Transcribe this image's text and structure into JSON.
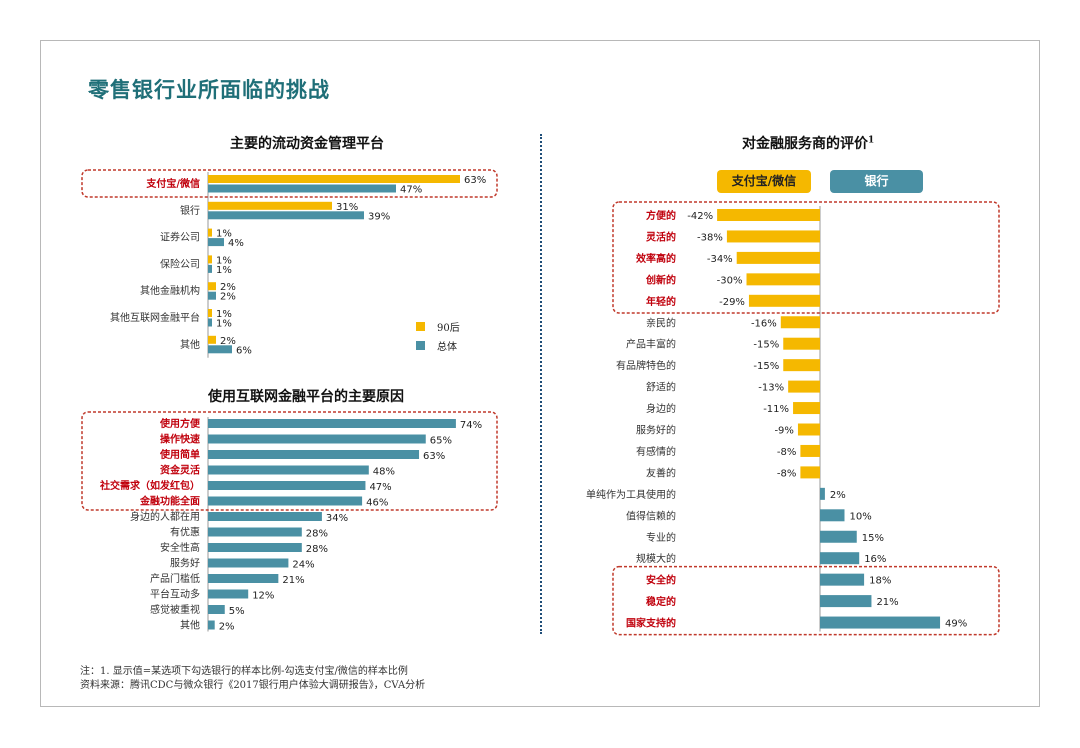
{
  "page_title": "零售银行业所面临的挑战",
  "chart_data": [
    {
      "type": "bar",
      "orientation": "horizontal",
      "title": "主要的流动资金管理平台",
      "categories": [
        "支付宝/微信",
        "银行",
        "证券公司",
        "保险公司",
        "其他金融机构",
        "其他互联网金融平台",
        "其他"
      ],
      "series": [
        {
          "name": "90后",
          "values": [
            63,
            31,
            1,
            1,
            2,
            1,
            2
          ],
          "color": "#f5b800"
        },
        {
          "name": "总体",
          "values": [
            47,
            39,
            4,
            1,
            2,
            1,
            6
          ],
          "color": "#4a90a4"
        }
      ],
      "highlighted_categories": [
        "支付宝/微信"
      ],
      "value_suffix": "%",
      "legend_position": "bottom-right",
      "xlim": [
        0,
        100
      ]
    },
    {
      "type": "bar",
      "orientation": "horizontal",
      "title": "使用互联网金融平台的主要原因",
      "categories": [
        "使用方便",
        "操作快速",
        "使用简单",
        "资金灵活",
        "社交需求（如发红包）",
        "金融功能全面",
        "身边的人都在用",
        "有优惠",
        "安全性高",
        "服务好",
        "产品门槛低",
        "平台互动多",
        "感觉被重视",
        "其他"
      ],
      "values": [
        74,
        65,
        63,
        48,
        47,
        46,
        34,
        28,
        28,
        24,
        21,
        12,
        5,
        2
      ],
      "color": "#4a90a4",
      "highlighted_categories": [
        "使用方便",
        "操作快速",
        "使用简单",
        "资金灵活",
        "社交需求（如发红包）",
        "金融功能全面"
      ],
      "value_suffix": "%",
      "xlim": [
        0,
        100
      ]
    },
    {
      "type": "bar",
      "orientation": "horizontal",
      "title": "对金融服务商的评价",
      "title_superscript": "1",
      "legend": [
        "支付宝/微信",
        "银行"
      ],
      "legend_position": "top",
      "categories": [
        "方便的",
        "灵活的",
        "效率高的",
        "创新的",
        "年轻的",
        "亲民的",
        "产品丰富的",
        "有品牌特色的",
        "舒适的",
        "身边的",
        "服务好的",
        "有感情的",
        "友善的",
        "单纯作为工具使用的",
        "值得信赖的",
        "专业的",
        "规模大的",
        "安全的",
        "稳定的",
        "国家支持的"
      ],
      "values": [
        -42,
        -38,
        -34,
        -30,
        -29,
        -16,
        -15,
        -15,
        -13,
        -11,
        -9,
        -8,
        -8,
        2,
        10,
        15,
        16,
        18,
        21,
        49
      ],
      "negative_color": "#f5b800",
      "positive_color": "#4a90a4",
      "highlighted_categories": [
        "方便的",
        "灵活的",
        "效率高的",
        "创新的",
        "年轻的",
        "安全的",
        "稳定的",
        "国家支持的"
      ],
      "value_suffix": "%",
      "xlim": [
        -50,
        50
      ]
    }
  ],
  "footnotes": {
    "note": "注：1. 显示值=某选项下勾选银行的样本比例-勾选支付宝/微信的样本比例",
    "source": "资料来源：腾讯CDC与微众银行《2017银行用户体验大调研报告》，CVA分析"
  },
  "colors": {
    "title": "#1f6f78",
    "yellow": "#f5b800",
    "teal": "#4a90a4",
    "highlight_border": "#c0392b",
    "highlight_text": "#c0000c"
  }
}
